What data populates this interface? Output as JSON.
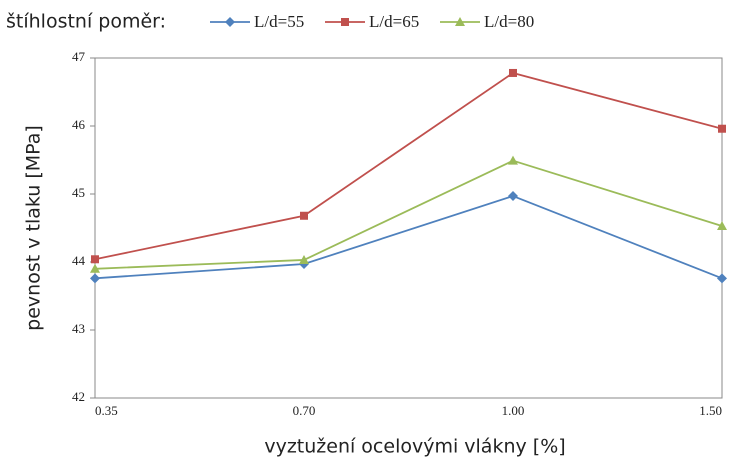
{
  "chart_data": {
    "type": "line",
    "legend_title": "štíhlostní poměr:",
    "x_label": "vyztužení ocelovými vlákny [%]",
    "y_label": "pevnost v tlaku [MPa]",
    "categories": [
      "0.35",
      "0.70",
      "1.00",
      "1.50"
    ],
    "series": [
      {
        "name": "L/d=55",
        "color": "#4f81bd",
        "marker": "diamond",
        "values": [
          43.76,
          43.97,
          44.97,
          43.76
        ]
      },
      {
        "name": "L/d=65",
        "color": "#c0504d",
        "marker": "square",
        "values": [
          44.04,
          44.68,
          46.78,
          45.96
        ]
      },
      {
        "name": "L/d=80",
        "color": "#9bbb59",
        "marker": "triangle",
        "values": [
          43.9,
          44.03,
          45.49,
          44.53
        ]
      }
    ],
    "ylim": [
      42,
      47
    ],
    "yticks": [
      42,
      43,
      44,
      45,
      46,
      47
    ],
    "grid": false,
    "legend": "top"
  }
}
